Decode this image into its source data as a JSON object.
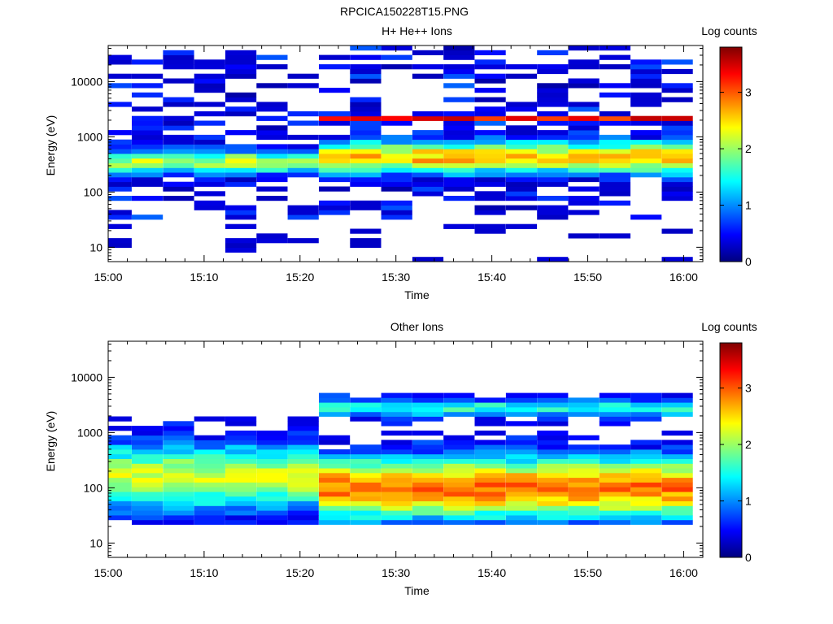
{
  "figure_title": "RPCICA150228T15.PNG",
  "colors": {
    "colormap": [
      "#00007f",
      "#0000ff",
      "#007fff",
      "#00ffff",
      "#7fff7f",
      "#ffff00",
      "#ff7f00",
      "#ff0000",
      "#7f0000"
    ]
  },
  "chart_data": [
    {
      "type": "heatmap",
      "title": "H+ He++ Ions",
      "xlabel": "Time",
      "ylabel": "Energy (eV)",
      "x_range": [
        "15:00",
        "16:02"
      ],
      "y_range_ev": [
        5.5,
        45000
      ],
      "y_scale": "log",
      "x_tick_labels": [
        "15:00",
        "15:10",
        "15:20",
        "15:30",
        "15:40",
        "15:50",
        "16:00"
      ],
      "y_tick_labels": [
        "10",
        "100",
        "1000",
        "10000"
      ],
      "colorbar": {
        "label": "Log counts",
        "min": 0,
        "max": 3.8,
        "tick_labels": [
          "0",
          "1",
          "2",
          "3"
        ]
      },
      "time_bins": [
        "15:00:50",
        "15:04:05",
        "15:07:20",
        "15:10:35",
        "15:13:50",
        "15:17:05",
        "15:20:20",
        "15:23:35",
        "15:26:50",
        "15:30:05",
        "15:33:20",
        "15:36:35",
        "15:39:50",
        "15:43:05",
        "15:46:20",
        "15:49:35",
        "15:52:50",
        "15:56:05",
        "15:59:20"
      ],
      "profile_notes": "Main population 200–800 eV (log counts 2–2.8, peaking ~3 after 15:23); narrow band ~2000 eV (up to ~3.5) after 15:23; sparse low counts up to 40000 eV"
    },
    {
      "type": "heatmap",
      "title": "Other Ions",
      "xlabel": "Time",
      "ylabel": "Energy (eV)",
      "x_range": [
        "15:00",
        "16:02"
      ],
      "y_range_ev": [
        5.5,
        45000
      ],
      "y_scale": "log",
      "x_tick_labels": [
        "15:00",
        "15:10",
        "15:20",
        "15:30",
        "15:40",
        "15:50",
        "16:00"
      ],
      "y_tick_labels": [
        "10",
        "100",
        "1000",
        "10000"
      ],
      "colorbar": {
        "label": "Log counts",
        "min": 0,
        "max": 3.8,
        "tick_labels": [
          "0",
          "1",
          "2",
          "3"
        ]
      },
      "time_bins": [
        "15:00:50",
        "15:04:05",
        "15:07:20",
        "15:10:35",
        "15:13:50",
        "15:17:05",
        "15:20:20",
        "15:23:35",
        "15:26:50",
        "15:30:05",
        "15:33:20",
        "15:36:35",
        "15:39:50",
        "15:43:05",
        "15:46:20",
        "15:49:35",
        "15:52:50",
        "15:56:05",
        "15:59:20"
      ],
      "profile_notes": "Broad population 25–700 eV (log counts ~2.5–3.3 after 15:23, 1.5–2.5 before); band ~2000–4500 eV after 15:23"
    }
  ]
}
